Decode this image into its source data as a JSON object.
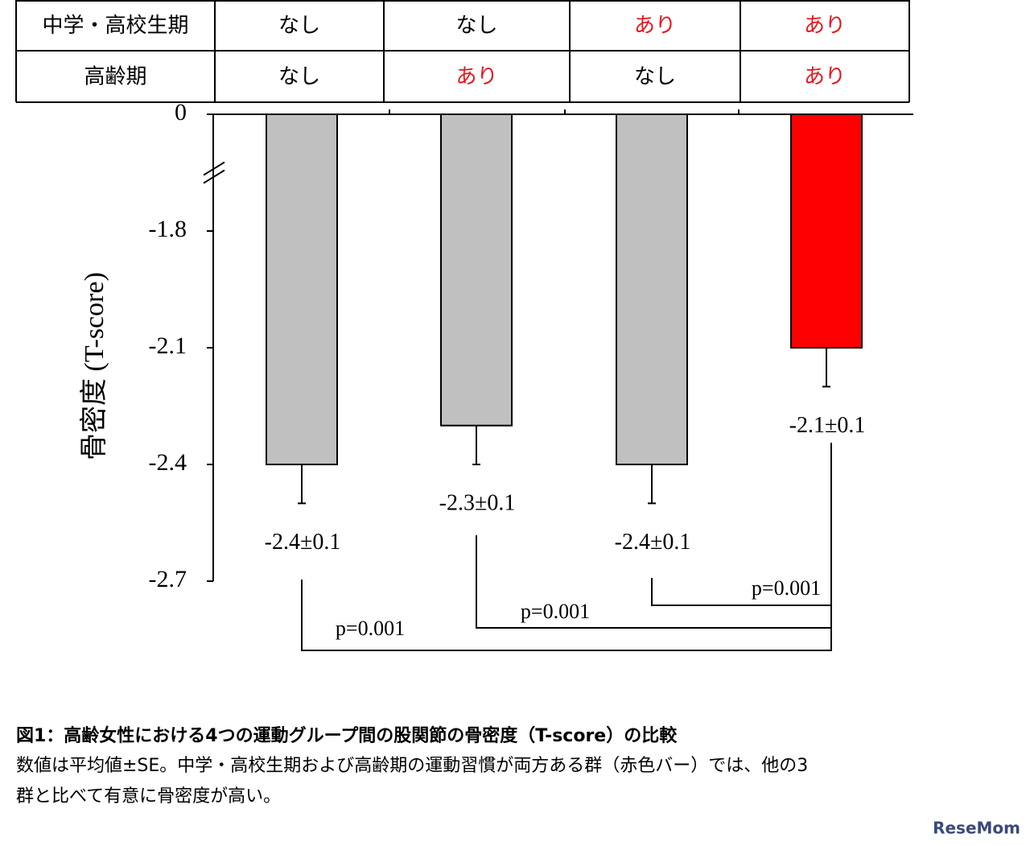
{
  "table": {
    "rows": [
      [
        "中学・高校生期",
        "なし",
        "なし",
        "あり",
        "あり"
      ],
      [
        "高齢期",
        "なし",
        "あり",
        "なし",
        "あり"
      ]
    ],
    "highlight": [
      [
        false,
        false,
        false,
        true,
        true
      ],
      [
        false,
        false,
        true,
        false,
        true
      ]
    ],
    "highlight_color": "#e8141b"
  },
  "chart_data": {
    "type": "bar",
    "y_label": "骨密度 (T-score)",
    "categories": [
      null,
      null,
      null,
      null
    ],
    "values": [
      -2.4,
      -2.3,
      -2.4,
      -2.1
    ],
    "errors": [
      0.1,
      0.1,
      0.1,
      0.1
    ],
    "value_labels": [
      "-2.4±0.1",
      "-2.3±0.1",
      "-2.4±0.1",
      "-2.1±0.1"
    ],
    "colors": [
      "#c0c0c0",
      "#c0c0c0",
      "#c0c0c0",
      "#ff0000"
    ],
    "ylim": [
      -2.7,
      0
    ],
    "yticks": [
      0,
      -1.8,
      -2.1,
      -2.4,
      -2.7
    ],
    "axis_break": [
      -1.8,
      0
    ],
    "comparisons": [
      {
        "from": 0,
        "to": 3,
        "label": "p=0.001"
      },
      {
        "from": 1,
        "to": 3,
        "label": "p=0.001"
      },
      {
        "from": 2,
        "to": 3,
        "label": "p=0.001"
      }
    ]
  },
  "caption": {
    "title": "図1：高齢女性における4つの運動グループ間の股関節の骨密度（T-score）の比較",
    "lines": [
      "数値は平均値±SE。中学・高校生期および高齢期の運動習慣が両方ある群（赤色バー）では、他の3",
      "群と比べて有意に骨密度が高い。"
    ]
  },
  "watermark": "ReseMom"
}
